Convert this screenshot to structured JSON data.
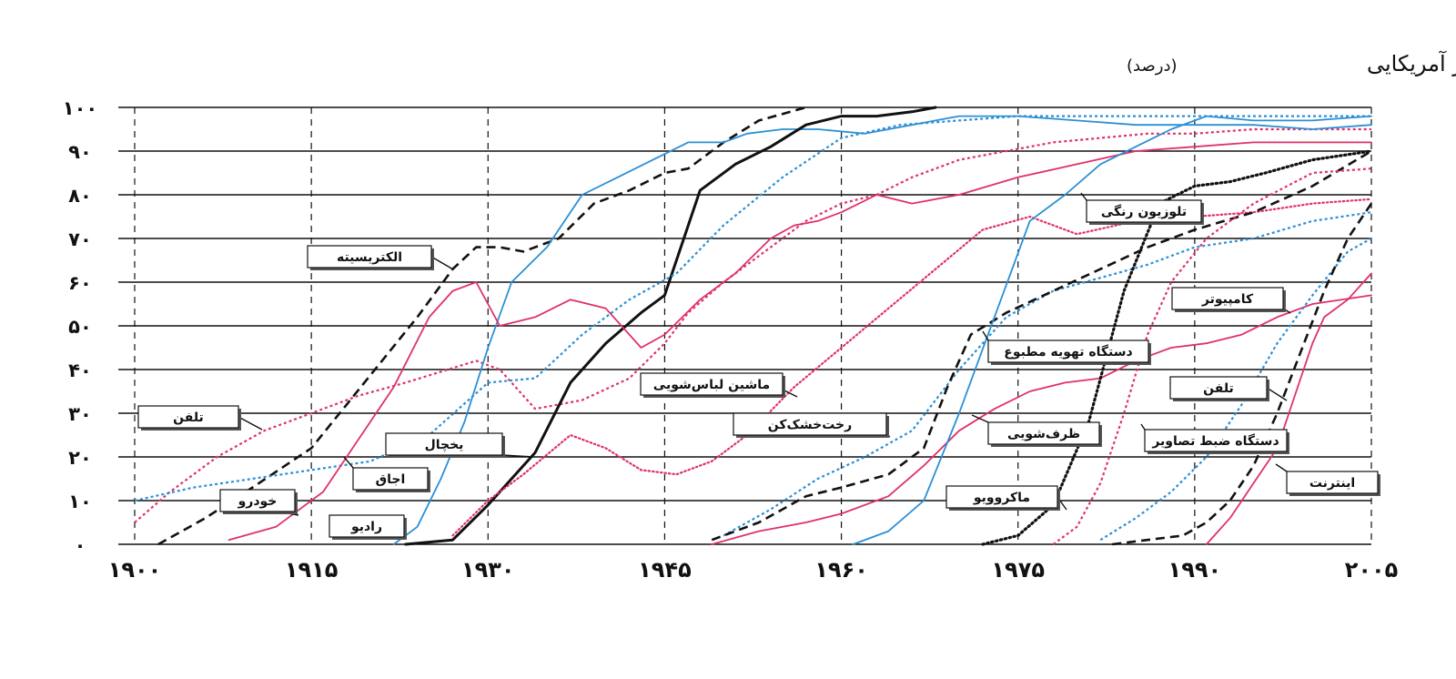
{
  "chart_data": {
    "type": "line",
    "title": "مصرفِ خانوار آمریکایی",
    "unit": "(درصد)",
    "xlim": [
      1900,
      2005
    ],
    "ylim": [
      0,
      100
    ],
    "xticks": [
      1900,
      1915,
      1930,
      1945,
      1960,
      1975,
      1990,
      2005
    ],
    "xtick_labels": [
      "۱۹۰۰",
      "۱۹۱۵",
      "۱۹۳۰",
      "۱۹۴۵",
      "۱۹۶۰",
      "۱۹۷۵",
      "۱۹۹۰",
      "۲۰۰۵"
    ],
    "yticks": [
      0,
      10,
      20,
      30,
      40,
      50,
      60,
      70,
      80,
      90,
      100
    ],
    "ytick_labels": [
      "۰",
      "۱۰",
      "۲۰",
      "۳۰",
      "۴۰",
      "۵۰",
      "۶۰",
      "۷۰",
      "۸۰",
      "۹۰",
      "۱۰۰"
    ],
    "grid": {
      "horizontal": true,
      "vertical_dashed": true
    },
    "colors": {
      "blue": "#2b8fd6",
      "pink": "#e0306b",
      "black": "#111111"
    },
    "series": [
      {
        "name": "تلفن",
        "color": "#e0306b",
        "style": "dotted-dense",
        "x": [
          1900,
          1903,
          1907,
          1911,
          1915,
          1919,
          1923,
          1929,
          1931,
          1934,
          1938,
          1942,
          1945,
          1947,
          1950,
          1954,
          1957,
          1960,
          1963,
          1966,
          1970,
          1974,
          1978,
          1982,
          1986,
          1990,
          1995,
          2000,
          2005
        ],
        "y": [
          5,
          12,
          20,
          26,
          30,
          34,
          37,
          42,
          40,
          31,
          33,
          38,
          46,
          53,
          60,
          68,
          74,
          78,
          80,
          84,
          88,
          90,
          92,
          93,
          94,
          94,
          95,
          95,
          95
        ]
      },
      {
        "name": "خودرو",
        "color": "#111111",
        "style": "dashed",
        "x": [
          1902,
          1906,
          1910,
          1915,
          1918,
          1921,
          1924,
          1927,
          1929,
          1931,
          1933,
          1936,
          1939,
          1942,
          1945,
          1947,
          1950,
          1953,
          1957
        ],
        "y": [
          0,
          6,
          13,
          22,
          32,
          42,
          52,
          63,
          68,
          68,
          67,
          70,
          78,
          81,
          85,
          86,
          92,
          97,
          100
        ]
      },
      {
        "name": "الکتریسیته",
        "color": "#2b8fd6",
        "style": "solid-thin",
        "x": [
          1922,
          1924,
          1926,
          1928,
          1930,
          1932,
          1935,
          1938,
          1941,
          1944,
          1947,
          1950,
          1952,
          1955,
          1958,
          1962,
          1966,
          1970,
          1975,
          1980,
          1985,
          1990,
          1995,
          2000,
          2005
        ],
        "y": [
          0,
          4,
          15,
          28,
          45,
          60,
          68,
          80,
          84,
          88,
          92,
          92,
          94,
          95,
          95,
          94,
          96,
          98,
          98,
          97,
          96,
          96,
          96,
          95,
          96
        ]
      },
      {
        "name": "رادیو",
        "color": "#111111",
        "style": "solid-thick",
        "x": [
          1923,
          1927,
          1930,
          1934,
          1937,
          1940,
          1943,
          1945,
          1948,
          1951,
          1954,
          1957,
          1960,
          1963,
          1966,
          1968
        ],
        "y": [
          0,
          1,
          9,
          21,
          37,
          46,
          53,
          57,
          81,
          87,
          91,
          96,
          98,
          98,
          99,
          100
        ]
      },
      {
        "name": "یخچال",
        "color": "#e0306b",
        "style": "dotted",
        "x": [
          1927,
          1930,
          1933,
          1937,
          1940,
          1943,
          1946,
          1949,
          1952,
          1956,
          1960,
          1964,
          1968,
          1972,
          1976,
          1980,
          1985,
          1990,
          1995,
          2000,
          2005
        ],
        "y": [
          2,
          10,
          16,
          25,
          22,
          17,
          16,
          19,
          25,
          36,
          45,
          54,
          63,
          72,
          75,
          71,
          74,
          75,
          76,
          78,
          79
        ]
      },
      {
        "name": "اجاق",
        "color": "#2b8fd6",
        "style": "dotted-dense",
        "x": [
          1900,
          1905,
          1910,
          1915,
          1920,
          1925,
          1930,
          1934,
          1938,
          1942,
          1946,
          1950,
          1955,
          1960,
          1965,
          1970,
          1975,
          1980,
          1990,
          2005
        ],
        "y": [
          10,
          13,
          15,
          17,
          19,
          25,
          37,
          38,
          48,
          56,
          62,
          73,
          84,
          93,
          96,
          97,
          98,
          98,
          98,
          98
        ]
      },
      {
        "name": "ماشین لباس‌شویی",
        "color": "#e0306b",
        "style": "solid-thin",
        "x": [
          1908,
          1912,
          1916,
          1919,
          1922,
          1925,
          1927,
          1929,
          1931,
          1934,
          1937,
          1940,
          1943,
          1945,
          1948,
          1951,
          1954,
          1956,
          1958,
          1960,
          1963,
          1966,
          1970,
          1975,
          1980,
          1985,
          1990,
          1995,
          2000,
          2005
        ],
        "y": [
          1,
          4,
          12,
          24,
          36,
          52,
          58,
          60,
          50,
          52,
          56,
          54,
          45,
          48,
          56,
          62,
          70,
          73,
          74,
          76,
          80,
          78,
          80,
          84,
          87,
          90,
          91,
          92,
          92,
          92
        ]
      },
      {
        "name": "رخت‌خشک‌کن",
        "color": "#2b8fd6",
        "style": "dotted-dense",
        "x": [
          1950,
          1954,
          1958,
          1962,
          1966,
          1970,
          1974,
          1978,
          1982,
          1986,
          1990,
          1995,
          2000,
          2005
        ],
        "y": [
          2,
          8,
          15,
          20,
          26,
          40,
          52,
          58,
          61,
          64,
          68,
          70,
          74,
          76
        ]
      },
      {
        "name": "ظرف‌شویی",
        "color": "#e0306b",
        "style": "solid-thin",
        "x": [
          1949,
          1953,
          1957,
          1960,
          1964,
          1967,
          1970,
          1973,
          1976,
          1979,
          1982,
          1985,
          1988,
          1991,
          1994,
          1997,
          2000,
          2005
        ],
        "y": [
          0,
          3,
          5,
          7,
          11,
          18,
          26,
          31,
          35,
          37,
          38,
          42,
          45,
          46,
          48,
          52,
          55,
          57
        ]
      },
      {
        "name": "دستگاه تهویه مطبوع",
        "color": "#111111",
        "style": "dashed",
        "x": [
          1949,
          1953,
          1957,
          1960,
          1964,
          1967,
          1969,
          1971,
          1974,
          1978,
          1982,
          1986,
          1990,
          1995,
          2000,
          2005
        ],
        "y": [
          1,
          5,
          11,
          13,
          16,
          22,
          36,
          48,
          53,
          58,
          63,
          68,
          72,
          76,
          82,
          90
        ]
      },
      {
        "name": "تلوزیون رنگی",
        "color": "#2b8fd6",
        "style": "solid-thin",
        "x": [
          1961,
          1964,
          1967,
          1970,
          1973,
          1976,
          1979,
          1982,
          1985,
          1988,
          1991,
          1995,
          2000,
          2005
        ],
        "y": [
          0,
          3,
          10,
          30,
          52,
          74,
          80,
          87,
          91,
          95,
          98,
          97,
          97,
          98
        ]
      },
      {
        "name": "ماکروویو",
        "color": "#111111",
        "style": "dotted-bold",
        "x": [
          1972,
          1975,
          1978,
          1981,
          1984,
          1987,
          1990,
          1993,
          1996,
          2000,
          2005
        ],
        "y": [
          0,
          2,
          9,
          28,
          58,
          78,
          82,
          83,
          85,
          88,
          90
        ]
      },
      {
        "name": "دستگاه ضبط تصاویر",
        "color": "#e0306b",
        "style": "dotted-dense",
        "x": [
          1978,
          1980,
          1982,
          1984,
          1986,
          1988,
          1991,
          1995,
          2000,
          2005
        ],
        "y": [
          0,
          4,
          14,
          30,
          48,
          60,
          70,
          78,
          85,
          86
        ]
      },
      {
        "name": "کامپیوتر",
        "color": "#2b8fd6",
        "style": "dotted-dense",
        "x": [
          1982,
          1985,
          1988,
          1991,
          1994,
          1997,
          2000,
          2003,
          2005
        ],
        "y": [
          1,
          6,
          12,
          20,
          32,
          46,
          57,
          67,
          70
        ]
      },
      {
        "name": "تلفن",
        "color": "#111111",
        "style": "dashed",
        "x": [
          1983,
          1986,
          1989,
          1991,
          1993,
          1995,
          1997,
          1999,
          2001,
          2003,
          2005
        ],
        "y": [
          0,
          1,
          2,
          5,
          10,
          18,
          30,
          44,
          58,
          70,
          78
        ]
      },
      {
        "name": "اینترنت",
        "color": "#e0306b",
        "style": "solid-thin",
        "x": [
          1991,
          1993,
          1995,
          1997,
          1998,
          1999,
          2000,
          2001,
          2003,
          2005
        ],
        "y": [
          0,
          6,
          14,
          22,
          30,
          38,
          46,
          52,
          56,
          62
        ]
      }
    ]
  },
  "labels": [
    {
      "text": "الکتریسیته"
    },
    {
      "text": "تلفن"
    },
    {
      "text": "خودرو"
    },
    {
      "text": "رادیو"
    },
    {
      "text": "اجاق"
    },
    {
      "text": "یخچال"
    },
    {
      "text": "ماشین لباس‌شویی"
    },
    {
      "text": "رخت‌خشک‌کن"
    },
    {
      "text": "دستگاه تهویه مطبوع"
    },
    {
      "text": "تلوزیون رنگی"
    },
    {
      "text": "ظرف‌شویی"
    },
    {
      "text": "کامپیوتر"
    },
    {
      "text": "تلفن"
    },
    {
      "text": "دستگاه ضبط تصاویر"
    },
    {
      "text": "ماکروویو"
    },
    {
      "text": "اینترنت"
    }
  ]
}
